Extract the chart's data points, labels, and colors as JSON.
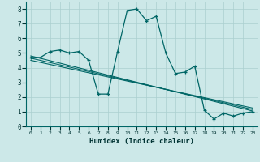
{
  "xlabel": "Humidex (Indice chaleur)",
  "bg_color": "#cce8e8",
  "grid_color": "#aacfcf",
  "line_color": "#006666",
  "xlim": [
    -0.5,
    23.5
  ],
  "ylim": [
    0,
    8.5
  ],
  "xticks": [
    0,
    1,
    2,
    3,
    4,
    5,
    6,
    7,
    8,
    9,
    10,
    11,
    12,
    13,
    14,
    15,
    16,
    17,
    18,
    19,
    20,
    21,
    22,
    23
  ],
  "yticks": [
    0,
    1,
    2,
    3,
    4,
    5,
    6,
    7,
    8
  ],
  "series1_x": [
    0,
    1,
    2,
    3,
    4,
    5,
    6,
    7,
    8,
    9,
    10,
    11,
    12,
    13,
    14,
    15,
    16,
    17,
    18,
    19,
    20,
    21,
    22,
    23
  ],
  "series1_y": [
    4.7,
    4.7,
    5.1,
    5.2,
    5.0,
    5.1,
    4.5,
    2.2,
    2.2,
    5.1,
    7.9,
    8.0,
    7.2,
    7.5,
    5.0,
    3.6,
    3.7,
    4.1,
    1.1,
    0.5,
    0.9,
    0.7,
    0.9,
    1.0
  ],
  "trend1_x": [
    0,
    23
  ],
  "trend1_y": [
    4.8,
    1.05
  ],
  "trend2_x": [
    0,
    23
  ],
  "trend2_y": [
    4.65,
    1.15
  ],
  "trend3_x": [
    0,
    23
  ],
  "trend3_y": [
    4.5,
    1.25
  ]
}
